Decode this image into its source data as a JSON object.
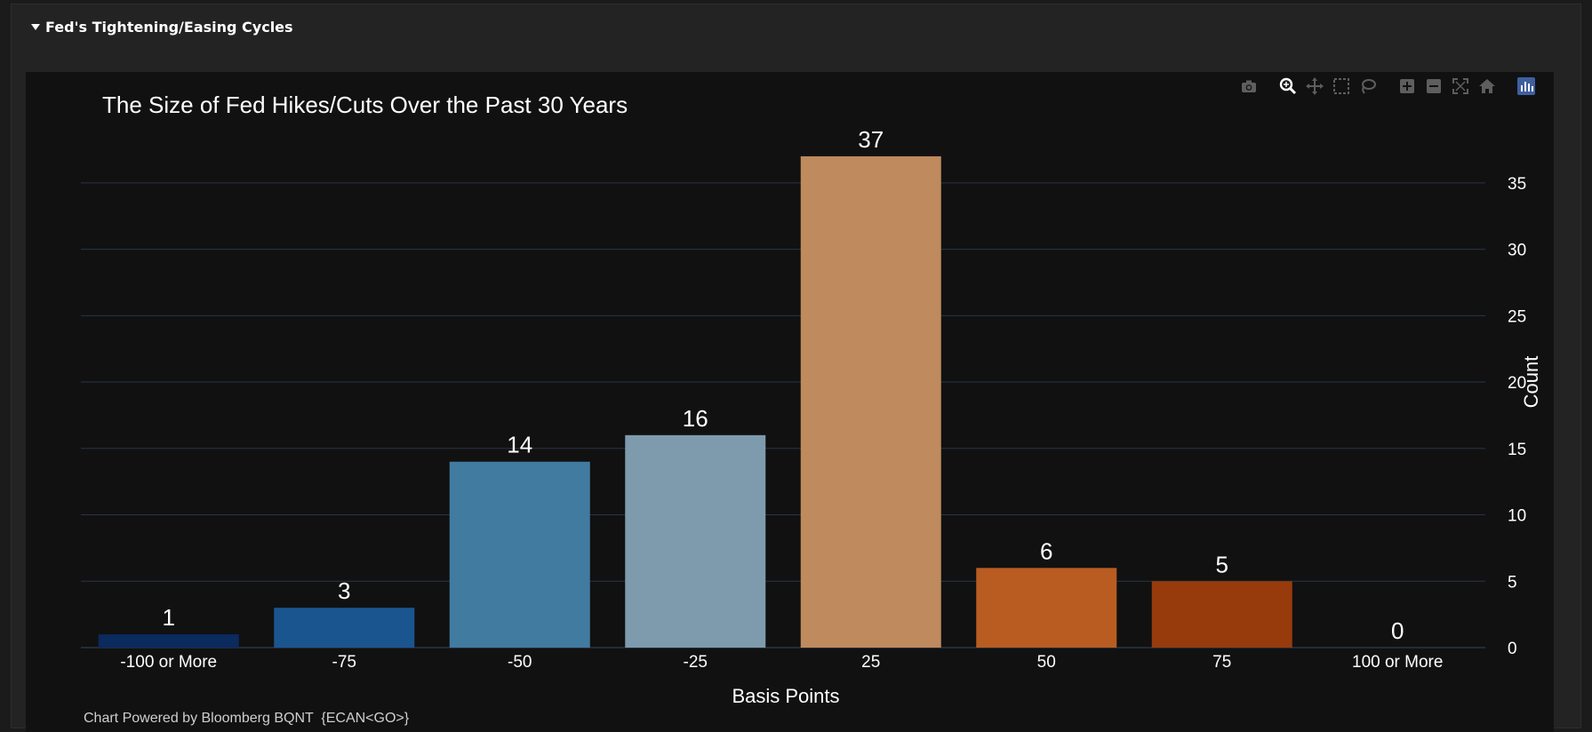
{
  "section": {
    "title": "Fed's Tightening/Easing Cycles"
  },
  "modebar": {
    "buttons": [
      "camera-icon",
      "zoom-icon",
      "pan-icon",
      "box-select-icon",
      "lasso-select-icon",
      "zoom-in-icon",
      "zoom-out-icon",
      "autoscale-icon",
      "reset-axes-icon",
      "plotly-logo-icon"
    ]
  },
  "footer": {
    "credit": "Chart Powered by Bloomberg BQNT  {ECAN<GO>}"
  },
  "colors": {
    "background": "#111111",
    "grid": "#2a3446",
    "bars": [
      "#0b2a5e",
      "#1b5590",
      "#427ba0",
      "#7e9bad",
      "#be8a5e",
      "#b95c22",
      "#983b0c",
      "#6f2a08"
    ]
  },
  "chart_data": {
    "type": "bar",
    "title": "The Size of Fed Hikes/Cuts Over the Past 30 Years",
    "xlabel": "Basis Points",
    "ylabel": "Count",
    "categories": [
      "-100 or More",
      "-75",
      "-50",
      "-25",
      "25",
      "50",
      "75",
      "100 or More"
    ],
    "values": [
      1,
      3,
      14,
      16,
      37,
      6,
      5,
      0
    ],
    "ylim": [
      0,
      38
    ],
    "yticks": [
      0,
      5,
      10,
      15,
      20,
      25,
      30,
      35
    ],
    "y_axis_side": "right",
    "grid": true,
    "data_labels": true
  }
}
